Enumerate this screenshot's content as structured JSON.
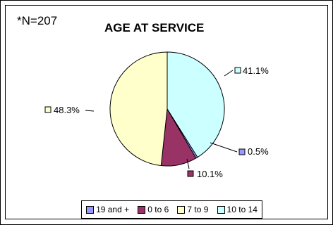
{
  "note": "*N=207",
  "chart_data": {
    "type": "pie",
    "title": "AGE AT SERVICE",
    "slices": [
      {
        "name": "10 to 14",
        "value": 41.1,
        "label": "41.1%",
        "color": "#ccffff"
      },
      {
        "name": "19 and +",
        "value": 0.5,
        "label": "0.5%",
        "color": "#9999ff"
      },
      {
        "name": "0 to 6",
        "value": 10.1,
        "label": "10.1%",
        "color": "#993366"
      },
      {
        "name": "7 to 9",
        "value": 48.3,
        "label": "48.3%",
        "color": "#ffffcc"
      }
    ],
    "legend_order": [
      "19 and +",
      "0 to 6",
      "7 to 9",
      "10 to 14"
    ],
    "legend_placement": "bottom"
  }
}
